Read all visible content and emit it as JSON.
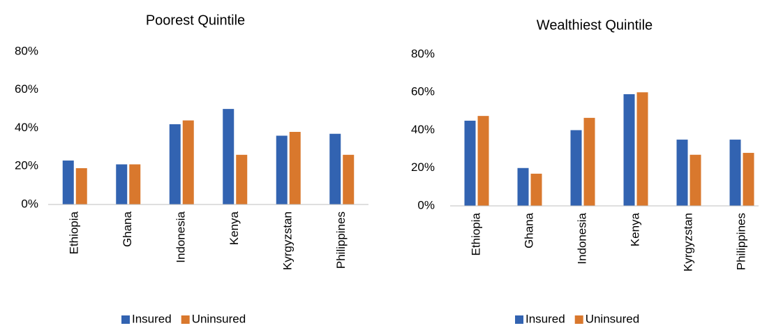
{
  "chart_data": [
    {
      "type": "bar",
      "title": "Poorest Quintile",
      "categories": [
        "Ethiopia",
        "Ghana",
        "Indonesia",
        "Kenya",
        "Kyrgyzstan",
        "Philippines"
      ],
      "series": [
        {
          "name": "Insured",
          "color": "#3263b1",
          "values": [
            23,
            21,
            42,
            50,
            36,
            37
          ]
        },
        {
          "name": "Uninsured",
          "color": "#d9782d",
          "values": [
            19,
            21,
            44,
            26,
            38,
            26
          ]
        }
      ],
      "ylim": [
        0,
        80
      ],
      "yticks": [
        {
          "value": 0,
          "label": "0%"
        },
        {
          "value": 20,
          "label": "20%"
        },
        {
          "value": 40,
          "label": "40%"
        },
        {
          "value": 60,
          "label": "60%"
        },
        {
          "value": 80,
          "label": "80%"
        }
      ],
      "grid": false,
      "legend": "bottom"
    },
    {
      "type": "bar",
      "title": "Wealthiest Quintile",
      "categories": [
        "Ethiopia",
        "Ghana",
        "Indonesia",
        "Kenya",
        "Kyrgyzstan",
        "Philippines"
      ],
      "series": [
        {
          "name": "Insured",
          "color": "#3263b1",
          "values": [
            45,
            20,
            40,
            59,
            35,
            35
          ]
        },
        {
          "name": "Uninsured",
          "color": "#d9782d",
          "values": [
            47.5,
            17,
            46.5,
            60,
            27,
            28
          ]
        }
      ],
      "ylim": [
        0,
        80
      ],
      "yticks": [
        {
          "value": 0,
          "label": "0%"
        },
        {
          "value": 20,
          "label": "20%"
        },
        {
          "value": 40,
          "label": "40%"
        },
        {
          "value": 60,
          "label": "60%"
        },
        {
          "value": 80,
          "label": "80%"
        }
      ],
      "grid": false,
      "legend": "bottom"
    }
  ]
}
